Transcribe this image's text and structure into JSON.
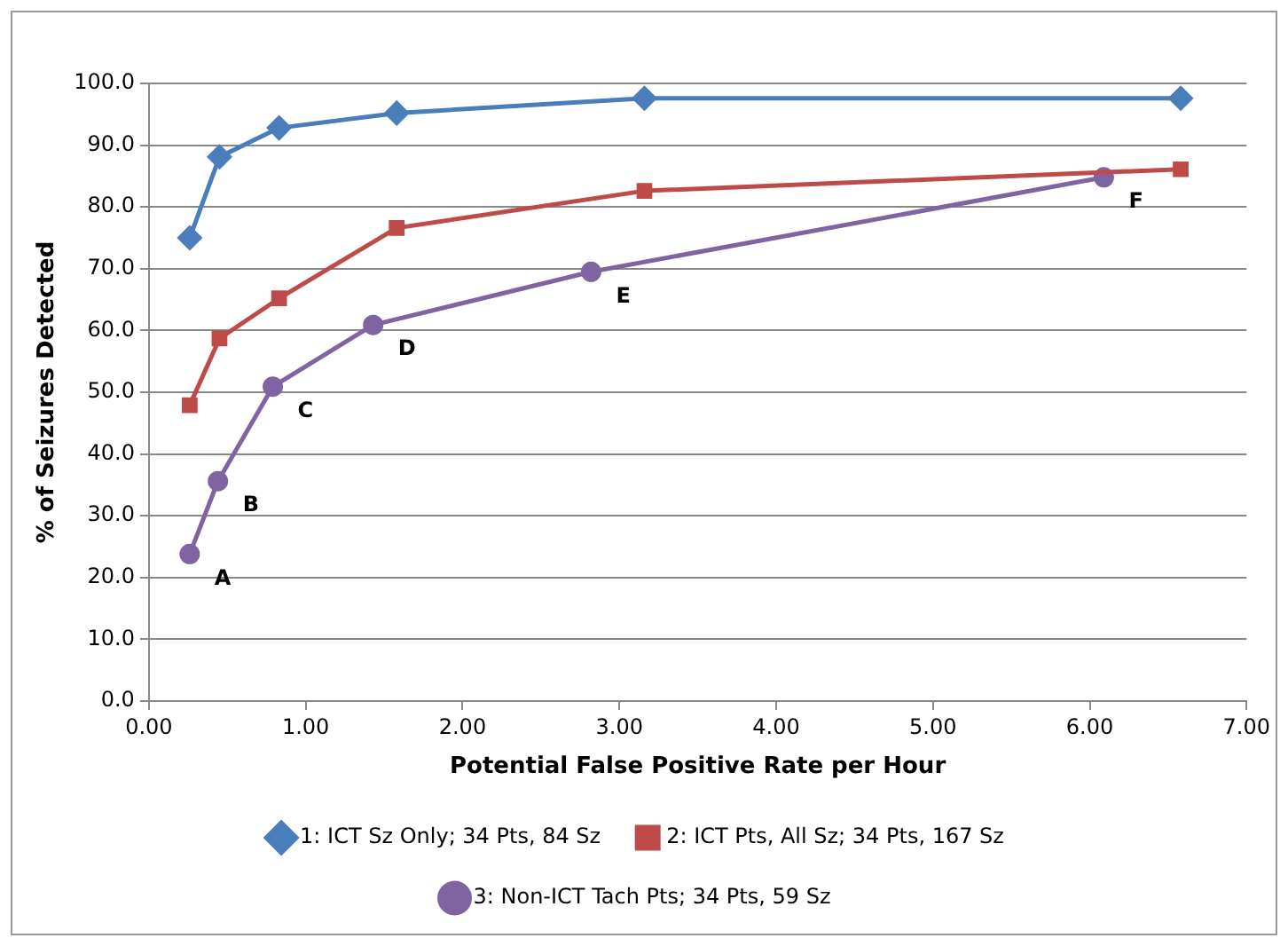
{
  "chart_data": {
    "type": "line",
    "xlabel": "Potential False Positive Rate per Hour",
    "ylabel": "% of Seizures Detected",
    "series": [
      {
        "name": "1: ICT Sz Only; 34 Pts, 84 Sz",
        "color": "#4a7ebb",
        "marker": "diamond",
        "x": [
          0.26,
          0.45,
          0.83,
          1.58,
          3.16,
          6.58
        ],
        "values": [
          75.0,
          88.1,
          92.8,
          95.2,
          97.6,
          97.6
        ]
      },
      {
        "name": "2: ICT Pts, All Sz; 34 Pts, 167 Sz",
        "color": "#be4b48",
        "marker": "square",
        "x": [
          0.26,
          0.45,
          0.83,
          1.58,
          3.16,
          6.58
        ],
        "values": [
          47.9,
          58.7,
          65.2,
          76.6,
          82.6,
          86.1
        ]
      },
      {
        "name": "3: Non-ICT Tach Pts; 34 Pts, 59 Sz",
        "color": "#8064a2",
        "marker": "circle",
        "x": [
          0.26,
          0.44,
          0.79,
          1.43,
          2.82,
          6.09
        ],
        "values": [
          23.8,
          35.6,
          50.9,
          60.9,
          69.5,
          84.8
        ]
      }
    ],
    "xlim": [
      0,
      7
    ],
    "xticks": [
      {
        "value": 0,
        "label": "0.00"
      },
      {
        "value": 1,
        "label": "1.00"
      },
      {
        "value": 2,
        "label": "2.00"
      },
      {
        "value": 3,
        "label": "3.00"
      },
      {
        "value": 4,
        "label": "4.00"
      },
      {
        "value": 5,
        "label": "5.00"
      },
      {
        "value": 6,
        "label": "6.00"
      },
      {
        "value": 7,
        "label": "7.00"
      }
    ],
    "ylim": [
      0,
      100
    ],
    "yticks": [
      {
        "value": 0,
        "label": "0.0"
      },
      {
        "value": 10,
        "label": "10.0"
      },
      {
        "value": 20,
        "label": "20.0"
      },
      {
        "value": 30,
        "label": "30.0"
      },
      {
        "value": 40,
        "label": "40.0"
      },
      {
        "value": 50,
        "label": "50.0"
      },
      {
        "value": 60,
        "label": "60.0"
      },
      {
        "value": 70,
        "label": "70.0"
      },
      {
        "value": 80,
        "label": "80.0"
      },
      {
        "value": 90,
        "label": "90.0"
      },
      {
        "value": 100,
        "label": "100.0"
      }
    ],
    "grid": "y",
    "legend": "bottom",
    "annotations": [
      {
        "text": "A",
        "x": 0.26,
        "y": 23.8
      },
      {
        "text": "B",
        "x": 0.44,
        "y": 35.6
      },
      {
        "text": "C",
        "x": 0.79,
        "y": 50.9
      },
      {
        "text": "D",
        "x": 1.43,
        "y": 60.9
      },
      {
        "text": "E",
        "x": 2.82,
        "y": 69.5
      },
      {
        "text": "F",
        "x": 6.09,
        "y": 84.8
      }
    ]
  }
}
